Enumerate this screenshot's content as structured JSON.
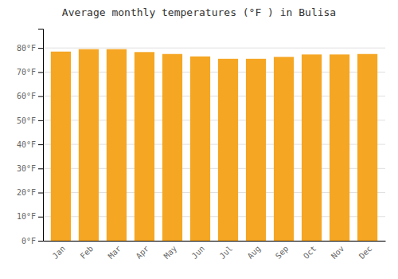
{
  "chart_data": {
    "type": "bar",
    "title": "Average monthly temperatures (°F ) in Bulisa",
    "categories": [
      "Jan",
      "Feb",
      "Mar",
      "Apr",
      "May",
      "Jun",
      "Jul",
      "Aug",
      "Sep",
      "Oct",
      "Nov",
      "Dec"
    ],
    "values": [
      78.5,
      79.5,
      79.5,
      78.3,
      77.5,
      76.5,
      75.5,
      75.5,
      76.3,
      77.3,
      77.3,
      77.5
    ],
    "color": "#F5A623",
    "ylim": [
      0,
      88
    ],
    "yticks": [
      {
        "value": 0,
        "label": "0°F"
      },
      {
        "value": 10,
        "label": "10°F"
      },
      {
        "value": 20,
        "label": "20°F"
      },
      {
        "value": 30,
        "label": "30°F"
      },
      {
        "value": 40,
        "label": "40°F"
      },
      {
        "value": 50,
        "label": "50°F"
      },
      {
        "value": 60,
        "label": "60°F"
      },
      {
        "value": 70,
        "label": "70°F"
      },
      {
        "value": 80,
        "label": "80°F"
      }
    ],
    "grid": true
  }
}
